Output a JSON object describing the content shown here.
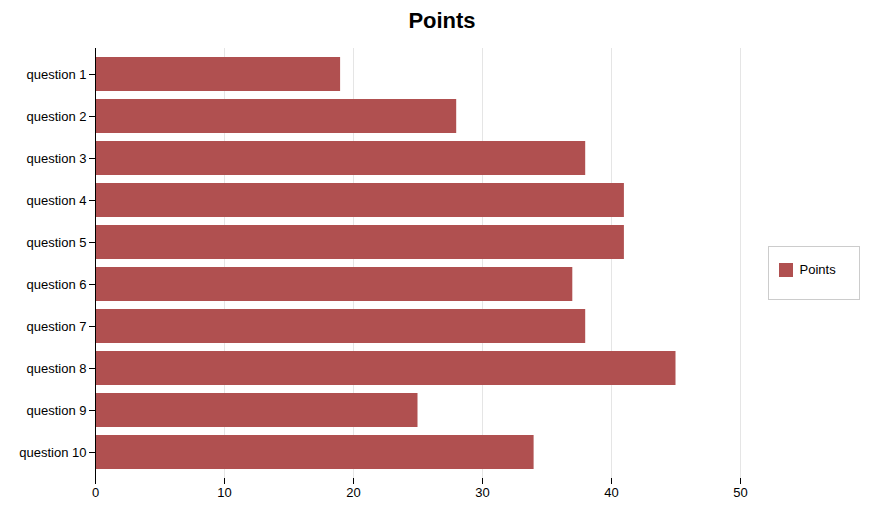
{
  "chart_data": {
    "type": "bar",
    "title": "Points",
    "orientation": "horizontal",
    "categories": [
      "question 1",
      "question 2",
      "question 3",
      "question 4",
      "question 5",
      "question 6",
      "question 7",
      "question 8",
      "question 9",
      "question 10"
    ],
    "series": [
      {
        "name": "Points",
        "color": "#B05050",
        "values": [
          19,
          28,
          38,
          41,
          41,
          37,
          38,
          45,
          25,
          34
        ]
      }
    ],
    "xlim": [
      0,
      50
    ],
    "xticks": [
      0,
      10,
      20,
      30,
      40,
      50
    ],
    "grid": true,
    "legend": "right"
  }
}
